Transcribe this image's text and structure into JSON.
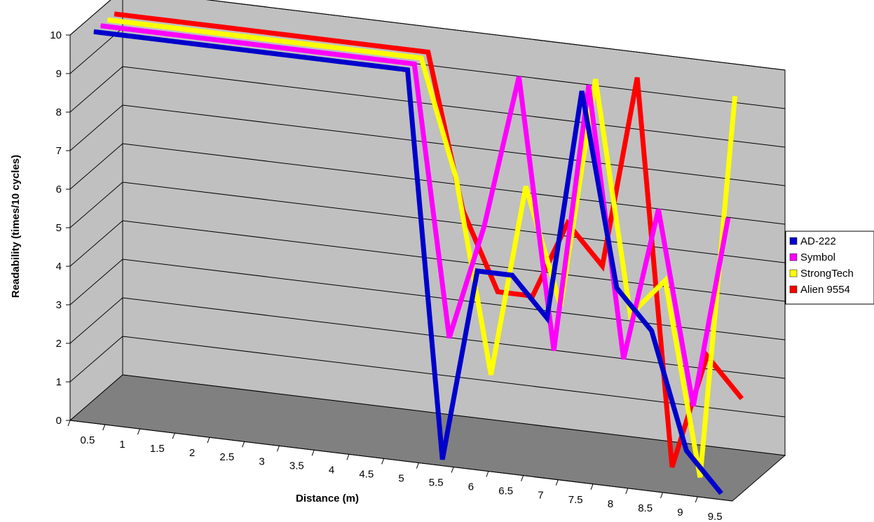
{
  "chart_data": {
    "type": "line",
    "title": "",
    "xlabel": "Distance (m)",
    "ylabel": "Readability (times/10 cycles)",
    "x": [
      0.5,
      1,
      1.5,
      2,
      2.5,
      3,
      3.5,
      4,
      4.5,
      5,
      5.5,
      6,
      6.5,
      7,
      7.5,
      8,
      8.5,
      9,
      9.5
    ],
    "x_tick_labels": [
      "0.5",
      "1",
      "1.5",
      "2",
      "2.5",
      "3",
      "3.5",
      "4",
      "4.5",
      "5",
      "5.5",
      "6",
      "6.5",
      "7",
      "7.5",
      "8",
      "8.5",
      "9",
      "9.5"
    ],
    "y_tick_labels": [
      "0",
      "1",
      "2",
      "3",
      "4",
      "5",
      "6",
      "7",
      "8",
      "9",
      "10"
    ],
    "ylim": [
      0,
      10
    ],
    "grid": true,
    "three_d": true,
    "legend_position": "right",
    "series": [
      {
        "name": "AD-222",
        "color": "#0000cc",
        "values": [
          10,
          10,
          10,
          10,
          10,
          10,
          10,
          10,
          10,
          10,
          0,
          5,
          5,
          4,
          10,
          5,
          4,
          1,
          0
        ]
      },
      {
        "name": "Symbol",
        "color": "#ff00ff",
        "values": [
          10,
          10,
          10,
          10,
          10,
          10,
          10,
          10,
          10,
          10,
          3,
          6,
          10,
          3,
          10,
          3,
          7,
          2,
          7
        ]
      },
      {
        "name": "StrongTech",
        "color": "#ffff00",
        "values": [
          10,
          10,
          10,
          10,
          10,
          10,
          10,
          10,
          10,
          10,
          7,
          2,
          7,
          4,
          10,
          4,
          5,
          0,
          10
        ]
      },
      {
        "name": "Alien 9554",
        "color": "#ff0000",
        "values": [
          10,
          10,
          10,
          10,
          10,
          10,
          10,
          10,
          10,
          10,
          6,
          4,
          4,
          6,
          5,
          10,
          0,
          3,
          2
        ]
      }
    ]
  },
  "colors": {
    "back_wall": "#c0c0c0",
    "side_wall": "#c0c0c0",
    "floor": "#808080",
    "gridline": "#000000"
  }
}
